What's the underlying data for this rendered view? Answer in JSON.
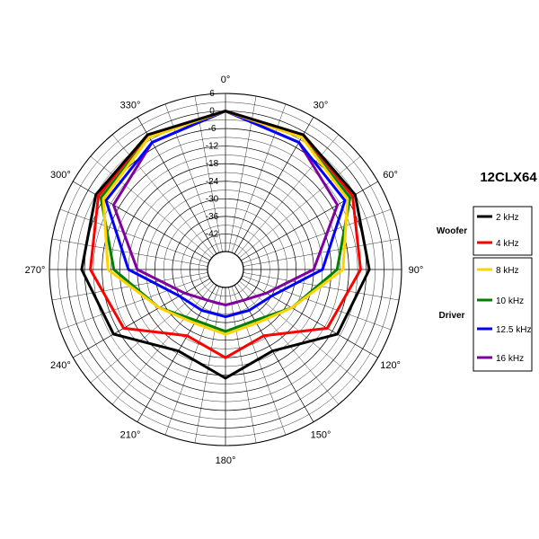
{
  "chart_data": {
    "type": "polar",
    "title": "12CLX64",
    "radial_unit": "dB",
    "radial_range": [
      -48,
      6
    ],
    "ring_labels": [
      "6",
      "0",
      "-6",
      "-12",
      "-18",
      "-24",
      "-30",
      "-36",
      "-42"
    ],
    "angle_labels": [
      "0°",
      "30°",
      "60°",
      "90°",
      "120°",
      "150°",
      "180°",
      "210°",
      "240°",
      "270°",
      "300°",
      "330°"
    ],
    "angles": [
      0,
      30,
      60,
      90,
      120,
      150,
      180,
      210,
      240,
      270,
      300,
      330
    ],
    "groups": [
      {
        "label": "Woofer",
        "series": [
          0,
          1
        ]
      },
      {
        "label": "Driver",
        "series": [
          2,
          3,
          4,
          5
        ]
      }
    ],
    "series": [
      {
        "name": "2 kHz",
        "color": "#000000",
        "values": [
          0,
          -1,
          -3,
          -5,
          -10,
          -22,
          -17,
          -22,
          -10,
          -5,
          -3,
          -1
        ]
      },
      {
        "name": "4 kHz",
        "color": "#ff0000",
        "values": [
          0,
          -1,
          -4,
          -8,
          -14,
          -28,
          -24,
          -28,
          -14,
          -8,
          -4,
          -1
        ]
      },
      {
        "name": "8 kHz",
        "color": "#ffd200",
        "values": [
          0,
          -2,
          -6,
          -14,
          -28,
          -33,
          -32,
          -33,
          -28,
          -14,
          -6,
          -2
        ]
      },
      {
        "name": "10 kHz",
        "color": "#008000",
        "values": [
          0,
          -2,
          -5,
          -16,
          -28,
          -34,
          -33,
          -34,
          -28,
          -16,
          -5,
          -2
        ]
      },
      {
        "name": "12.5 kHz",
        "color": "#0000ff",
        "values": [
          0,
          -4,
          -7,
          -21,
          -36,
          -38,
          -38,
          -38,
          -36,
          -21,
          -7,
          -4
        ]
      },
      {
        "name": "16 kHz",
        "color": "#8000a0",
        "values": [
          0,
          -4,
          -10,
          -24,
          -38,
          -42,
          -42,
          -42,
          -38,
          -24,
          -10,
          -4
        ]
      }
    ],
    "grid": true,
    "legend_position": "right"
  }
}
